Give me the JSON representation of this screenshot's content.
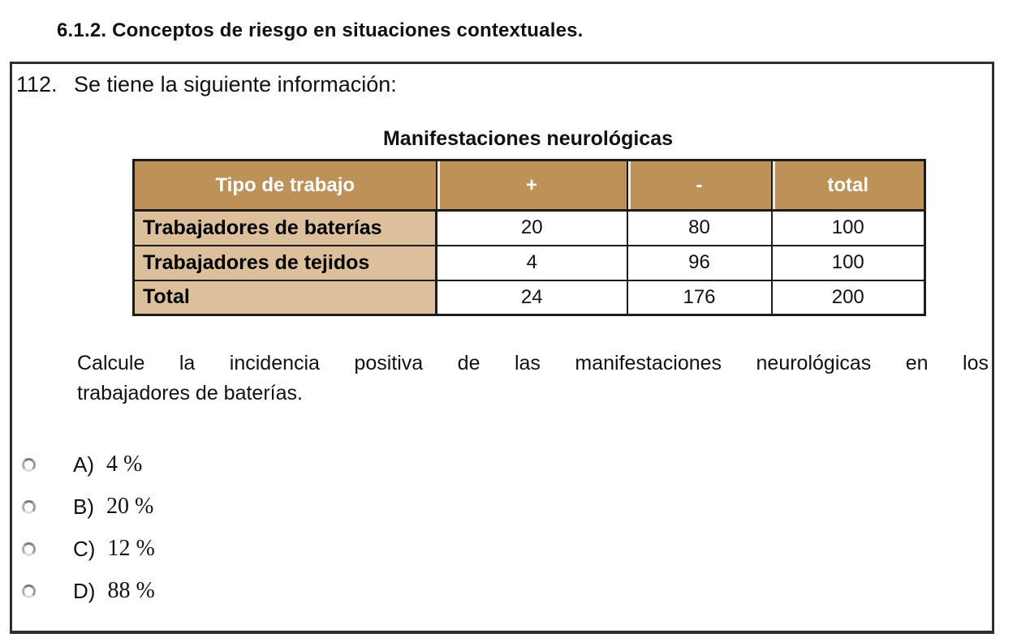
{
  "page": {
    "section_heading": "6.1.2. Conceptos de riesgo en situaciones contextuales."
  },
  "question": {
    "number": "112.",
    "intro": "Se tiene la siguiente información:",
    "body_line1": "Calcule la incidencia positiva de las manifestaciones neurológicas en los",
    "body_line2": "trabajadores de baterías."
  },
  "table": {
    "title": "Manifestaciones neurológicas",
    "headers": [
      "Tipo de trabajo",
      "+",
      "-",
      "total"
    ],
    "rows": [
      {
        "label": "Trabajadores de baterías",
        "values": [
          "20",
          "80",
          "100"
        ]
      },
      {
        "label": "Trabajadores de tejidos",
        "values": [
          "4",
          "96",
          "100"
        ]
      },
      {
        "label": "Total",
        "values": [
          "24",
          "176",
          "200"
        ]
      }
    ]
  },
  "options": [
    {
      "letter": "A)",
      "value": "4 %",
      "selected": false
    },
    {
      "letter": "B)",
      "value": "20 %",
      "selected": false
    },
    {
      "letter": "C)",
      "value": "12 %",
      "selected": false
    },
    {
      "letter": "D)",
      "value": "88 %",
      "selected": false
    }
  ],
  "colors": {
    "header_bg": "#bd9157",
    "label_bg": "#dcc09c",
    "header_text": "#ffffff",
    "table_border": "#1c1c1c",
    "box_border": "#2e2e2e"
  }
}
